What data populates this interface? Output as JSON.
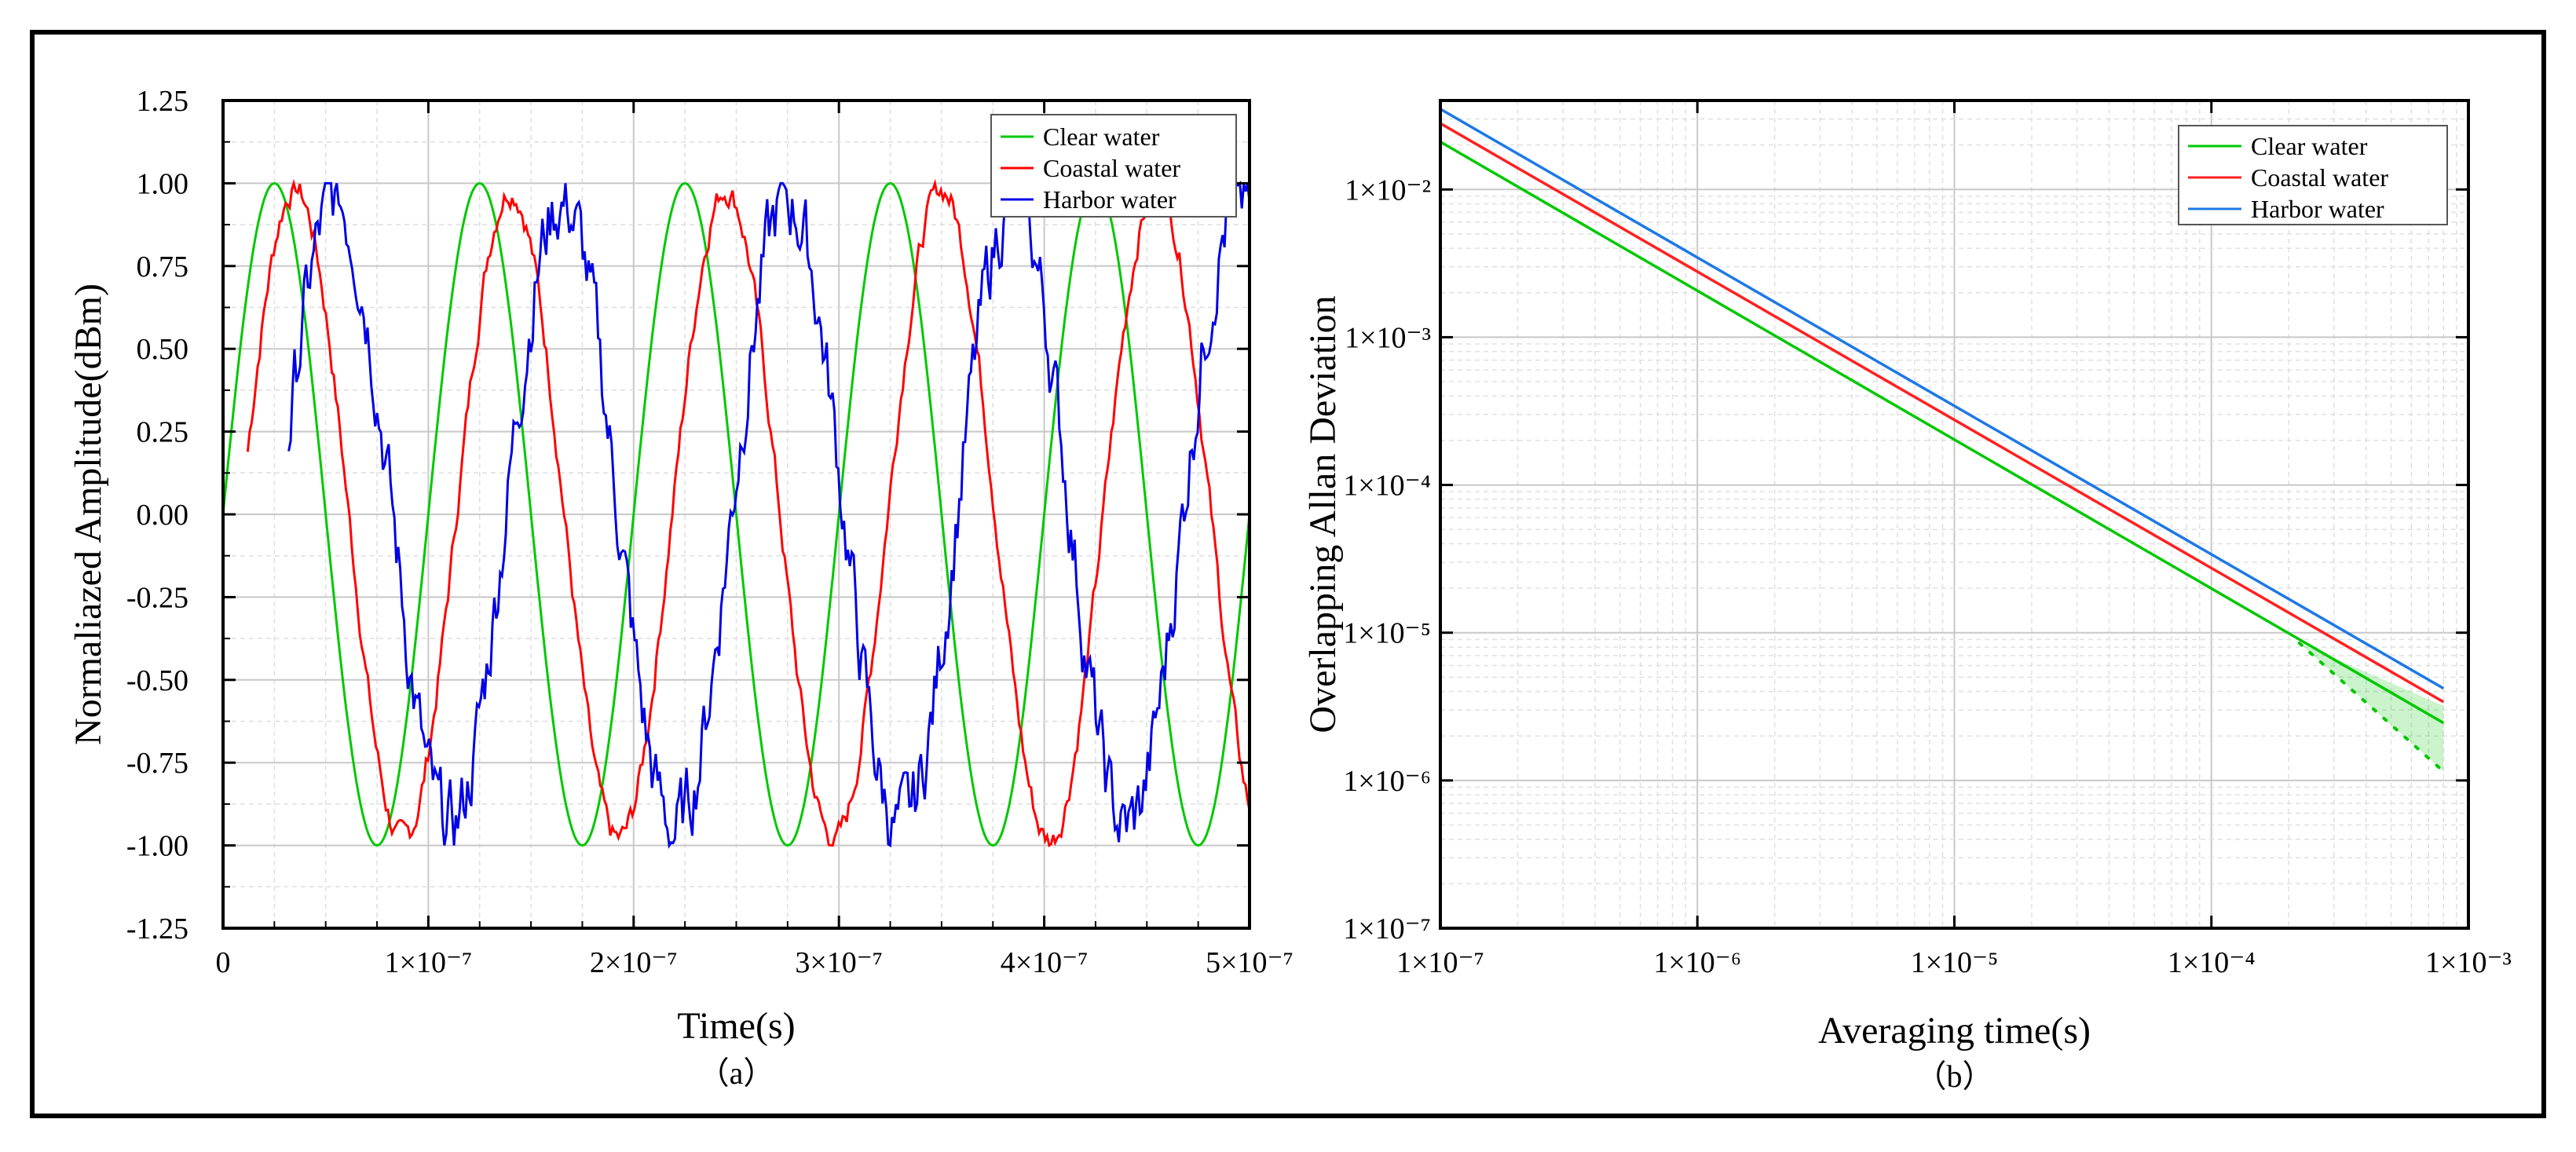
{
  "chart_data": [
    {
      "type": "line",
      "panel_label": "（a）",
      "xlabel": "Time(s)",
      "ylabel": "Normaliazed Amplitude(dBm)",
      "xlim": [
        0,
        5e-07
      ],
      "ylim": [
        -1.25,
        1.25
      ],
      "grid": true,
      "legend_position": "top-right",
      "x_ticks": [
        0,
        1e-07,
        2e-07,
        3e-07,
        4e-07,
        5e-07
      ],
      "x_tick_labels": [
        "0",
        "1×10⁻⁷",
        "2×10⁻⁷",
        "3×10⁻⁷",
        "4×10⁻⁷",
        "5×10⁻⁷"
      ],
      "y_ticks": [
        1.25,
        1.0,
        0.75,
        0.5,
        0.25,
        0.0,
        -0.25,
        -0.5,
        -0.75,
        -1.0,
        -1.25
      ],
      "y_tick_labels": [
        "1.25",
        "1.00",
        "0.75",
        "0.50",
        "0.25",
        "0.00",
        "-0.25",
        "-0.50",
        "-0.75",
        "-1.00",
        "-1.25"
      ],
      "series": [
        {
          "name": "Clear water",
          "color": "#00c800",
          "period": 1e-07,
          "peak_time": 2.5e-08,
          "x_start": 0,
          "x_end": 5e-07,
          "amplitude": 1.0,
          "noise": 0
        },
        {
          "name": "Coastal water",
          "color": "#ff0000",
          "period": 1.05e-07,
          "peak_time": 3.5e-08,
          "x_start": 1.2e-08,
          "x_end": 5e-07,
          "amplitude": 1.0,
          "noise": 0.03
        },
        {
          "name": "Harbor water",
          "color": "#0000e6",
          "period": 1.1e-07,
          "peak_time": 5.5e-08,
          "x_start": 3.2e-08,
          "x_end": 5e-07,
          "amplitude": 1.0,
          "noise": 0.09
        }
      ]
    },
    {
      "type": "line",
      "scale": "log-log",
      "panel_label": "（b）",
      "xlabel": "Averaging time(s)",
      "ylabel": "Overlapping Allan Deviation",
      "xlim": [
        1e-07,
        0.001
      ],
      "ylim": [
        1e-07,
        0.04
      ],
      "grid": true,
      "legend_position": "top-right",
      "x_tick_labels": [
        "1×10⁻⁷",
        "1×10⁻⁶",
        "1×10⁻⁵",
        "1×10⁻⁴",
        "1×10⁻³"
      ],
      "y_tick_labels": [
        "1×10⁻²",
        "1×10⁻³",
        "1×10⁻⁴",
        "1×10⁻⁵",
        "1×10⁻⁶",
        "1×10⁻⁷"
      ],
      "x_tick_values": [
        1e-07,
        1e-06,
        1e-05,
        0.0001,
        0.001
      ],
      "y_tick_values": [
        0.01,
        0.001,
        0.0001,
        1e-05,
        1e-06,
        1e-07
      ],
      "series": [
        {
          "name": "Clear water",
          "color": "#00c800",
          "x": [
            1e-07,
            0.0008
          ],
          "y": [
            0.021,
            2.45e-06
          ]
        },
        {
          "name": "Coastal water",
          "color": "#ff2020",
          "x": [
            1e-07,
            0.0008
          ],
          "y": [
            0.028,
            3.4e-06
          ]
        },
        {
          "name": "Harbor water",
          "color": "#1e78e6",
          "x": [
            1e-07,
            0.0008
          ],
          "y": [
            0.035,
            4.2e-06
          ]
        }
      ],
      "confidence_band": {
        "series": "Clear water",
        "color": "#00c800",
        "x": [
          0.00022,
          0.0008
        ],
        "upper": [
          8.5e-06,
          3.2e-06
        ],
        "lower": [
          8.5e-06,
          1.15e-06
        ]
      }
    }
  ]
}
